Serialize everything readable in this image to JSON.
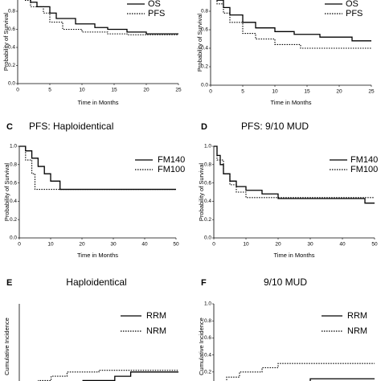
{
  "chart_data": [
    {
      "type": "line",
      "xlabel": "Time in Months",
      "ylabel": "Probability of Survival",
      "xlim": [
        0,
        25
      ],
      "ylim": [
        0,
        1
      ],
      "xticks": [
        0,
        5,
        10,
        15,
        20,
        25
      ],
      "yticks": [
        {
          "value": 0,
          "label": "0.0"
        },
        {
          "value": 0.2,
          "label": "0.2"
        },
        {
          "value": 0.4,
          "label": "0.4"
        },
        {
          "value": 0.6,
          "label": "0.6"
        },
        {
          "value": 0.8,
          "label": "0.8"
        }
      ],
      "series": [
        {
          "name": "OS",
          "color": "#000000",
          "linestyle": "solid",
          "x": [
            0,
            1,
            1,
            2,
            2,
            3,
            3,
            5,
            5,
            6,
            6,
            9,
            9,
            12,
            12,
            14,
            14,
            17,
            17,
            20,
            20,
            25
          ],
          "values": [
            1,
            1,
            0.95,
            0.95,
            0.9,
            0.9,
            0.85,
            0.85,
            0.78,
            0.78,
            0.72,
            0.72,
            0.66,
            0.66,
            0.62,
            0.62,
            0.6,
            0.6,
            0.57,
            0.57,
            0.55,
            0.55
          ]
        },
        {
          "name": "PFS",
          "color": "#000000",
          "linestyle": "dotted",
          "x": [
            0,
            1,
            1,
            2,
            2,
            4,
            4,
            5,
            5,
            7,
            7,
            10,
            10,
            14,
            14,
            17,
            17,
            20,
            20,
            25
          ],
          "values": [
            1,
            1,
            0.92,
            0.92,
            0.85,
            0.85,
            0.78,
            0.78,
            0.68,
            0.68,
            0.6,
            0.6,
            0.57,
            0.57,
            0.55,
            0.55,
            0.54,
            0.54,
            0.54,
            0.54
          ]
        }
      ]
    },
    {
      "type": "line",
      "xlabel": "Time in Months",
      "ylabel": "Probability of Survival",
      "xlim": [
        0,
        25
      ],
      "ylim": [
        0,
        1
      ],
      "xticks": [
        0,
        5,
        10,
        15,
        20,
        25
      ],
      "yticks": [
        {
          "value": 0,
          "label": "0.0"
        },
        {
          "value": 0.2,
          "label": "0.2"
        },
        {
          "value": 0.4,
          "label": "0.4"
        },
        {
          "value": 0.6,
          "label": "0.6"
        },
        {
          "value": 0.8,
          "label": "0.8"
        }
      ],
      "series": [
        {
          "name": "OS",
          "color": "#000000",
          "linestyle": "solid",
          "x": [
            0,
            1,
            1,
            2,
            2,
            3,
            3,
            5,
            5,
            7,
            7,
            10,
            10,
            13,
            13,
            17,
            17,
            22,
            22,
            25
          ],
          "values": [
            1,
            1,
            0.92,
            0.92,
            0.84,
            0.84,
            0.76,
            0.76,
            0.68,
            0.68,
            0.62,
            0.62,
            0.58,
            0.58,
            0.55,
            0.55,
            0.52,
            0.52,
            0.48,
            0.48
          ]
        },
        {
          "name": "PFS",
          "color": "#000000",
          "linestyle": "dotted",
          "x": [
            0,
            1,
            1,
            2,
            2,
            3,
            3,
            5,
            5,
            7,
            7,
            10,
            10,
            14,
            14,
            25
          ],
          "values": [
            1,
            1,
            0.88,
            0.88,
            0.78,
            0.78,
            0.68,
            0.68,
            0.56,
            0.56,
            0.5,
            0.5,
            0.44,
            0.44,
            0.4,
            0.4
          ]
        }
      ]
    },
    {
      "type": "line",
      "label": "C",
      "title": "PFS: Haploidentical",
      "xlabel": "Time in Months",
      "ylabel": "Probability of Survival",
      "xlim": [
        0,
        50
      ],
      "ylim": [
        0,
        1
      ],
      "xticks": [
        0,
        10,
        20,
        30,
        40,
        50
      ],
      "yticks": [
        {
          "value": 0,
          "label": "0.0"
        },
        {
          "value": 0.2,
          "label": "0.2"
        },
        {
          "value": 0.4,
          "label": "0.4"
        },
        {
          "value": 0.6,
          "label": "0.6"
        },
        {
          "value": 0.8,
          "label": "0.8"
        },
        {
          "value": 1,
          "label": "1.0"
        }
      ],
      "series": [
        {
          "name": "FM140",
          "color": "#000000",
          "linestyle": "solid",
          "x": [
            0,
            2,
            2,
            4,
            4,
            6,
            6,
            8,
            8,
            10,
            10,
            13,
            13,
            50
          ],
          "values": [
            1,
            1,
            0.95,
            0.95,
            0.87,
            0.87,
            0.78,
            0.78,
            0.7,
            0.7,
            0.62,
            0.62,
            0.53,
            0.53
          ]
        },
        {
          "name": "FM100",
          "color": "#000000",
          "linestyle": "dotted",
          "x": [
            0,
            2,
            2,
            4,
            4,
            5,
            5,
            50
          ],
          "values": [
            1,
            1,
            0.85,
            0.85,
            0.7,
            0.7,
            0.53,
            0.53
          ]
        }
      ]
    },
    {
      "type": "line",
      "label": "D",
      "title": "PFS: 9/10 MUD",
      "xlabel": "Time in Months",
      "ylabel": "Probability of Survival",
      "xlim": [
        0,
        50
      ],
      "ylim": [
        0,
        1
      ],
      "xticks": [
        0,
        10,
        20,
        30,
        40,
        50
      ],
      "yticks": [
        {
          "value": 0,
          "label": "0.0"
        },
        {
          "value": 0.2,
          "label": "0.2"
        },
        {
          "value": 0.4,
          "label": "0.4"
        },
        {
          "value": 0.6,
          "label": "0.6"
        },
        {
          "value": 0.8,
          "label": "0.8"
        },
        {
          "value": 1,
          "label": "1.0"
        }
      ],
      "series": [
        {
          "name": "FM140",
          "color": "#000000",
          "linestyle": "solid",
          "x": [
            0,
            1,
            1,
            2,
            2,
            3,
            3,
            5,
            5,
            7,
            7,
            10,
            10,
            15,
            15,
            20,
            20,
            47,
            47,
            50
          ],
          "values": [
            1,
            1,
            0.9,
            0.9,
            0.8,
            0.8,
            0.7,
            0.7,
            0.62,
            0.62,
            0.56,
            0.56,
            0.52,
            0.52,
            0.48,
            0.48,
            0.43,
            0.43,
            0.38,
            0.38
          ]
        },
        {
          "name": "FM100",
          "color": "#000000",
          "linestyle": "dotted",
          "x": [
            0,
            1,
            1,
            3,
            3,
            5,
            5,
            7,
            7,
            10,
            10,
            50
          ],
          "values": [
            1,
            1,
            0.85,
            0.85,
            0.7,
            0.7,
            0.58,
            0.58,
            0.5,
            0.5,
            0.44,
            0.44
          ]
        }
      ]
    },
    {
      "type": "line",
      "label": "E",
      "title": "Haploidentical",
      "ylabel": "Cumulative Incidence",
      "xlim": [
        0,
        50
      ],
      "ylim": [
        0,
        1
      ],
      "series": [
        {
          "name": "RRM",
          "color": "#000000",
          "linestyle": "solid",
          "x": [
            0,
            10,
            10,
            20,
            20,
            30,
            30,
            35,
            35,
            50
          ],
          "values": [
            0,
            0,
            0.05,
            0.05,
            0.1,
            0.1,
            0.15,
            0.15,
            0.2,
            0.2
          ]
        },
        {
          "name": "NRM",
          "color": "#000000",
          "linestyle": "dotted",
          "x": [
            0,
            3,
            3,
            6,
            6,
            10,
            10,
            15,
            15,
            25,
            25,
            50
          ],
          "values": [
            0,
            0,
            0.05,
            0.05,
            0.1,
            0.1,
            0.15,
            0.15,
            0.2,
            0.2,
            0.22,
            0.22
          ]
        }
      ]
    },
    {
      "type": "line",
      "label": "F",
      "title": "9/10 MUD",
      "ylabel": "Cumulative Incidence",
      "xlim": [
        0,
        50
      ],
      "ylim": [
        0,
        1
      ],
      "yticks": [
        {
          "value": 0.2,
          "label": "0.2"
        },
        {
          "value": 0.4,
          "label": "0.4"
        },
        {
          "value": 0.6,
          "label": "0.6"
        },
        {
          "value": 0.8,
          "label": "0.8"
        },
        {
          "value": 1,
          "label": "1.0"
        }
      ],
      "series": [
        {
          "name": "RRM",
          "color": "#000000",
          "linestyle": "solid",
          "x": [
            0,
            8,
            8,
            20,
            20,
            30,
            30,
            50
          ],
          "values": [
            0,
            0,
            0.05,
            0.05,
            0.08,
            0.08,
            0.12,
            0.12
          ]
        },
        {
          "name": "NRM",
          "color": "#000000",
          "linestyle": "dotted",
          "x": [
            0,
            2,
            2,
            4,
            4,
            8,
            8,
            15,
            15,
            20,
            20,
            50
          ],
          "values": [
            0,
            0,
            0.08,
            0.08,
            0.14,
            0.14,
            0.2,
            0.2,
            0.25,
            0.25,
            0.3,
            0.3
          ]
        }
      ]
    }
  ]
}
